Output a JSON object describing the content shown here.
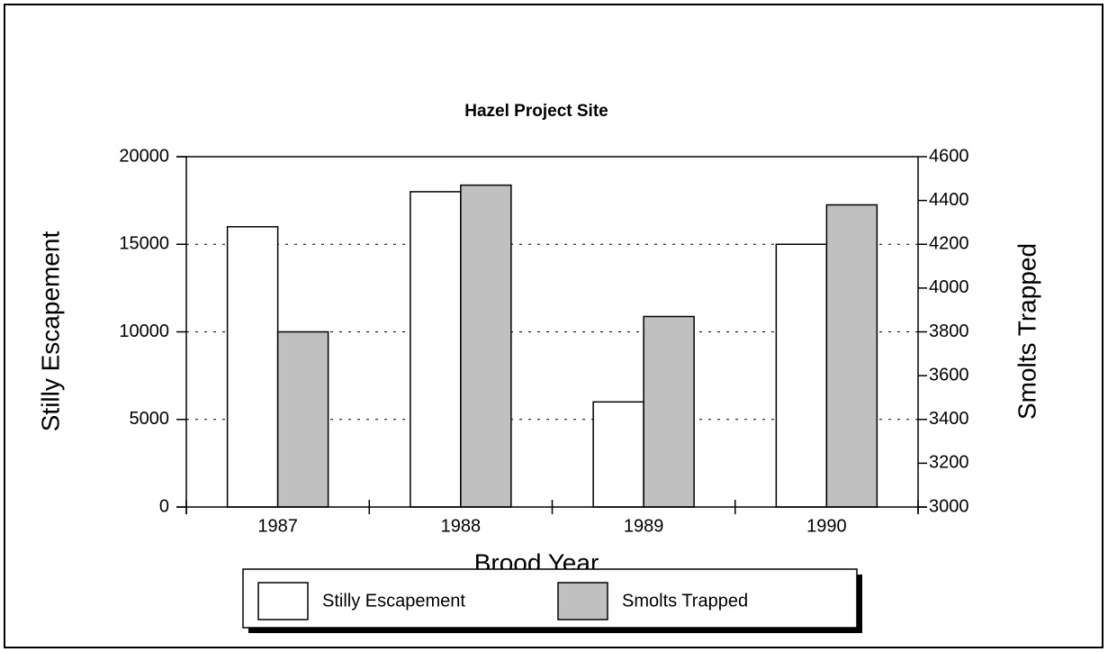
{
  "chart_data": {
    "type": "bar",
    "title": "Hazel Project Site",
    "x_label": "Brood Year",
    "y_label": "Stilly Escapement",
    "y2_label": "Smolts Trapped",
    "categories": [
      "1987",
      "1988",
      "1989",
      "1990"
    ],
    "series": [
      {
        "name": "Stilly Escapement",
        "color": "#ffffff",
        "values": [
          16000,
          18000,
          6000,
          15000
        ]
      },
      {
        "name": "Smolts Trapped",
        "color": "#c0c0c0",
        "axis": "y2",
        "values": [
          3800,
          4470,
          3870,
          4380
        ]
      }
    ],
    "ylim": [
      0,
      20000
    ],
    "yticks": [
      0,
      5000,
      10000,
      15000,
      20000
    ],
    "y2lim": [
      3000,
      4600
    ],
    "y2ticks": [
      3000,
      3200,
      3400,
      3600,
      3800,
      4000,
      4200,
      4400,
      4600
    ],
    "grid": true,
    "legend": "bottom"
  }
}
